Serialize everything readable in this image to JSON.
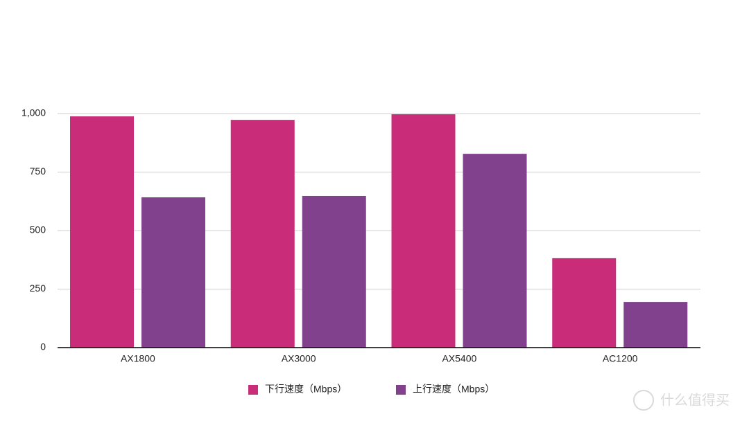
{
  "chart_data": {
    "type": "bar",
    "categories": [
      "AX1800",
      "AX3000",
      "AX5400",
      "AC1200"
    ],
    "series": [
      {
        "name": "下行速度（Mbps）",
        "color": "#c92d79",
        "values": [
          988,
          973,
          997,
          382
        ]
      },
      {
        "name": "上行速度（Mbps）",
        "color": "#81418c",
        "values": [
          642,
          648,
          828,
          195
        ]
      }
    ],
    "ylim": [
      0,
      1000
    ],
    "yticks": [
      0,
      250,
      500,
      750,
      {
        "value": 1000,
        "label": "1,000"
      }
    ],
    "grid": true,
    "legend": "bottom",
    "watermark": "什么值得买"
  }
}
